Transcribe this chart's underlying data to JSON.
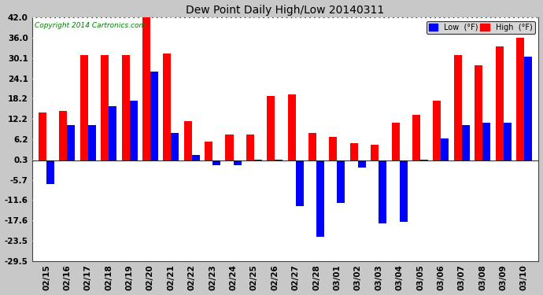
{
  "title": "Dew Point Daily High/Low 20140311",
  "copyright": "Copyright 2014 Cartronics.com",
  "labels": [
    "02/15",
    "02/16",
    "02/17",
    "02/18",
    "02/19",
    "02/20",
    "02/21",
    "02/22",
    "02/23",
    "02/24",
    "02/25",
    "02/26",
    "02/27",
    "02/28",
    "03/01",
    "03/02",
    "03/03",
    "03/04",
    "03/05",
    "03/06",
    "03/07",
    "03/08",
    "03/09",
    "03/10"
  ],
  "high": [
    14.0,
    14.5,
    31.0,
    31.0,
    31.0,
    42.0,
    31.5,
    11.5,
    5.5,
    7.5,
    7.5,
    19.0,
    19.5,
    8.0,
    7.0,
    5.0,
    4.5,
    11.0,
    13.5,
    17.5,
    31.0,
    28.0,
    33.5,
    36.0
  ],
  "low": [
    -7.0,
    10.5,
    10.5,
    16.0,
    17.5,
    26.0,
    8.0,
    1.5,
    -1.5,
    -1.5,
    0.3,
    0.3,
    -13.5,
    -22.5,
    -12.5,
    -2.0,
    -18.5,
    -18.0,
    0.3,
    6.5,
    10.5,
    11.0,
    11.0,
    30.5
  ],
  "ylim": [
    -29.5,
    42.0
  ],
  "yticks": [
    42.0,
    36.0,
    30.1,
    24.1,
    18.2,
    12.2,
    6.2,
    0.3,
    -5.7,
    -11.6,
    -17.6,
    -23.5,
    -29.5
  ],
  "high_color": "#ff0000",
  "low_color": "#0000ff",
  "bg_color": "#c8c8c8",
  "plot_bg_color": "#ffffff",
  "grid_color": "#aaaaaa",
  "bar_width": 0.38
}
